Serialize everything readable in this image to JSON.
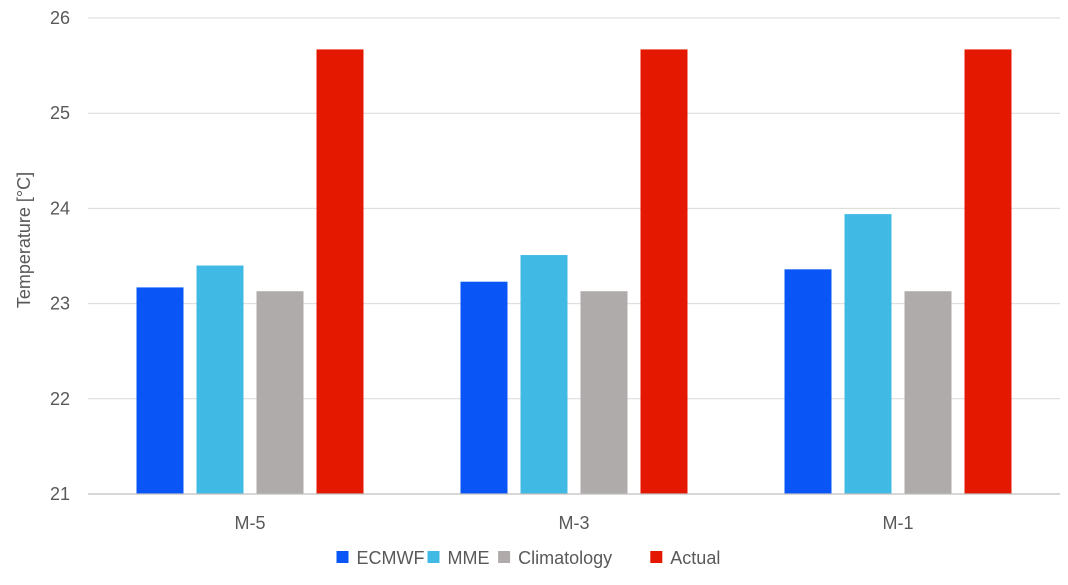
{
  "chart_data": {
    "type": "bar",
    "title": "",
    "xlabel": "",
    "ylabel": "Temperature [°C]",
    "ylim": [
      21,
      26
    ],
    "yticks": [
      21,
      22,
      23,
      24,
      25,
      26
    ],
    "grid": true,
    "legend_position": "bottom",
    "categories": [
      "M-5",
      "M-3",
      "M-1"
    ],
    "series": [
      {
        "name": "ECMWF",
        "color": "#0955f5",
        "values": [
          23.17,
          23.23,
          23.36
        ]
      },
      {
        "name": "MME",
        "color": "#40b9e4",
        "values": [
          23.4,
          23.51,
          23.94
        ]
      },
      {
        "name": "Climatology",
        "color": "#afabaa",
        "values": [
          23.13,
          23.13,
          23.13
        ]
      },
      {
        "name": "Actual",
        "color": "#e41700",
        "values": [
          25.67,
          25.67,
          25.67
        ]
      }
    ]
  }
}
